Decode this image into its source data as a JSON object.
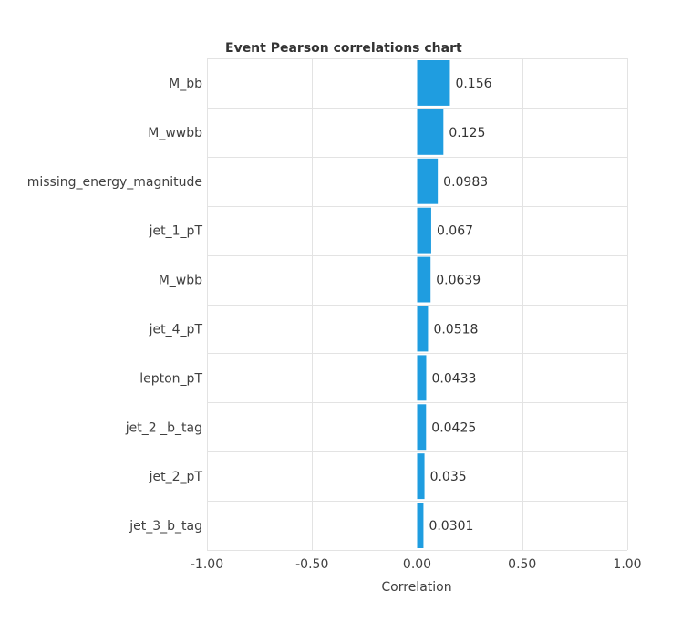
{
  "chart_data": {
    "type": "bar",
    "orientation": "horizontal",
    "title": "Event Pearson correlations chart",
    "xlabel": "Correlation",
    "ylabel": "",
    "xlim": [
      -1.0,
      1.0
    ],
    "x_ticks": [
      "-1.00",
      "-0.50",
      "0.00",
      "0.50",
      "1.00"
    ],
    "x_tick_values": [
      -1.0,
      -0.5,
      0.0,
      0.5,
      1.0
    ],
    "grid": true,
    "categories": [
      "M_bb",
      "M_wwbb",
      "missing_energy_magnitude",
      "jet_1_pT",
      "M_wbb",
      "jet_4_pT",
      "lepton_pT",
      "jet_2 _b_tag",
      "jet_2_pT",
      "jet_3_b_tag"
    ],
    "values": [
      0.156,
      0.125,
      0.0983,
      0.067,
      0.0639,
      0.0518,
      0.0433,
      0.0425,
      0.035,
      0.0301
    ],
    "value_labels": [
      "0.156",
      "0.125",
      "0.0983",
      "0.067",
      "0.0639",
      "0.0518",
      "0.0433",
      "0.0425",
      "0.035",
      "0.0301"
    ],
    "bar_color": "#1f9de0"
  }
}
